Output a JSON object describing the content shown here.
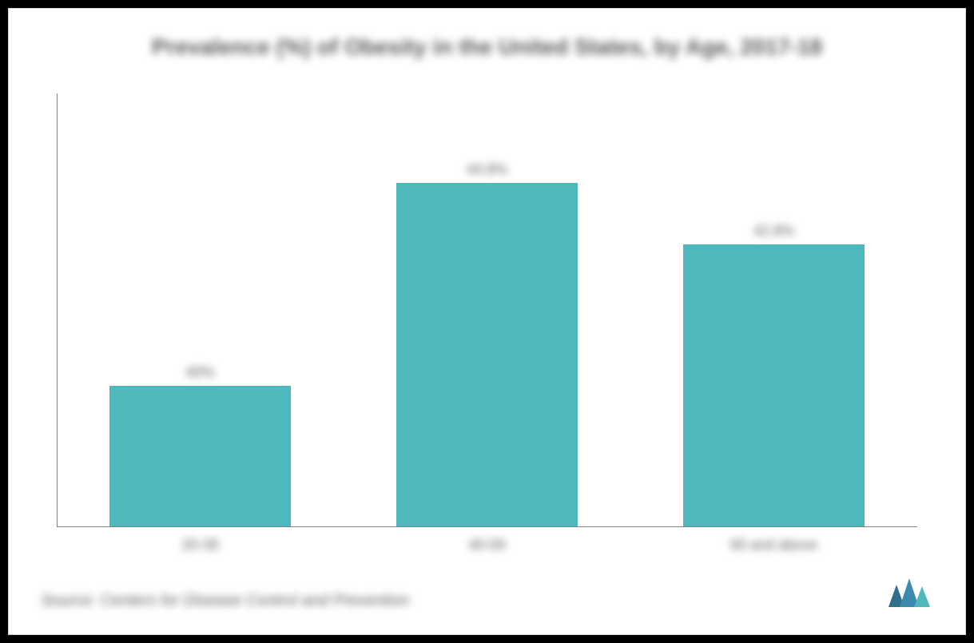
{
  "chart": {
    "type": "bar",
    "title": "Prevalence (%) of Obesity in the United States, by Age, 2017-18",
    "title_fontsize": 28,
    "title_color": "#595959",
    "categories": [
      "20-39",
      "40-59",
      "60 and above"
    ],
    "value_labels": [
      "40%",
      "44.8%",
      "42.8%"
    ],
    "values": [
      40.0,
      44.8,
      42.8
    ],
    "display_heights_pct": [
      41,
      100,
      82
    ],
    "bar_color": "#4fb8bd",
    "background_color": "#ffffff",
    "border_color": "#d9d9d9",
    "axis_color": "#808080",
    "label_color": "#595959",
    "label_fontsize": 18,
    "bar_width_ratio": 0.7,
    "ylim": [
      0,
      50
    ],
    "blurred": true
  },
  "source": {
    "text": "Source: Centers for Disease Control and Prevention",
    "fontsize": 20,
    "color": "#595959",
    "font_style": "italic"
  },
  "logo": {
    "name": "mordor-intelligence-logo",
    "bar_colors": [
      "#2e6f8e",
      "#3a8bad",
      "#4fb8bd"
    ]
  }
}
